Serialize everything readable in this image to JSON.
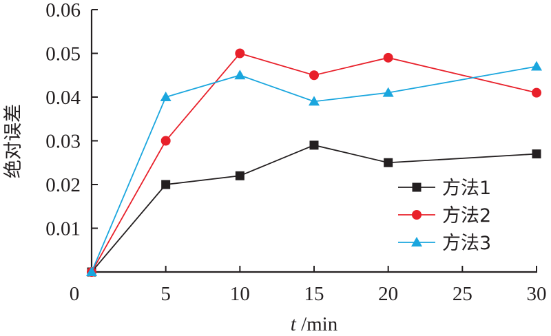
{
  "chart_data": {
    "type": "line",
    "title": "",
    "xlabel_italic": "t",
    "xlabel_unit": " /min",
    "ylabel": "绝对误差",
    "xlim": [
      0,
      30
    ],
    "ylim": [
      0,
      0.06
    ],
    "grid": false,
    "legend_position": "lower-right",
    "x": [
      0,
      5,
      10,
      15,
      20,
      30
    ],
    "x_ticks": [
      5,
      10,
      15,
      20,
      25,
      30
    ],
    "x_tick_labels": [
      "5",
      "10",
      "15",
      "20",
      "25",
      "30"
    ],
    "y_ticks": [
      0.01,
      0.02,
      0.03,
      0.04,
      0.05,
      0.06
    ],
    "y_tick_labels": [
      "0.01",
      "0.02",
      "0.03",
      "0.04",
      "0.05",
      "0.06"
    ],
    "origin_label": "0",
    "series": [
      {
        "name": "方法1",
        "marker": "square",
        "color": "#231f20",
        "values": [
          0,
          0.02,
          0.022,
          0.029,
          0.025,
          0.027
        ]
      },
      {
        "name": "方法2",
        "marker": "circle",
        "color": "#e8202a",
        "values": [
          0,
          0.03,
          0.05,
          0.045,
          0.049,
          0.041
        ]
      },
      {
        "name": "方法3",
        "marker": "triangle",
        "color": "#1aa6de",
        "values": [
          0,
          0.04,
          0.045,
          0.039,
          0.041,
          0.047
        ]
      }
    ]
  }
}
